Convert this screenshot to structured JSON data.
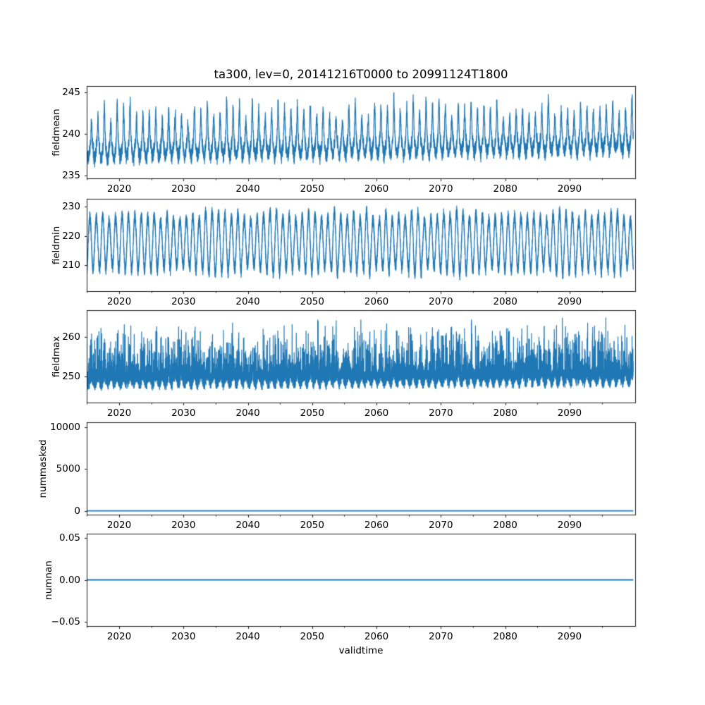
{
  "figure": {
    "title": "ta300, lev=0, 20141216T0000 to 20991124T1800",
    "xlabel": "validtime",
    "line_color": "#1f77b4",
    "background": "#ffffff",
    "spine_color": "#000000"
  },
  "x_axis": {
    "label": "validtime",
    "xlim": [
      2014.96,
      2100.2
    ],
    "major_ticks": [
      2020,
      2030,
      2040,
      2050,
      2060,
      2070,
      2080,
      2090
    ],
    "major_tick_labels": [
      "2020",
      "2030",
      "2040",
      "2050",
      "2060",
      "2070",
      "2080",
      "2090"
    ],
    "minor_ticks": [
      2015,
      2025,
      2035,
      2045,
      2055,
      2065,
      2075,
      2085,
      2095
    ],
    "data_start": 2014.96,
    "data_end": 2099.9
  },
  "chart_data": [
    {
      "type": "line",
      "ylabel": "fieldmean",
      "y_ticks": [
        235,
        240,
        245
      ],
      "y_tick_labels": [
        "235",
        "240",
        "245"
      ],
      "ylim": [
        234.66,
        245.76
      ],
      "series": {
        "name": "fieldmean",
        "color": "#1f77b4",
        "kind": "seasonal-spikes",
        "seed": 11,
        "n": 6000,
        "x_start": 2014.96,
        "x_end": 2099.9,
        "base": 238.4,
        "trend": 0.9,
        "noise": 1.7,
        "annual_peak_min": 2.6,
        "annual_peak_max": 5.2,
        "observed_min": 235.3,
        "observed_max": 245.5,
        "description": "noisy series with sharp annual peaks to ~242-245.5, baseline ~237-239.5, dips to ~235.5, slight upward trend"
      }
    },
    {
      "type": "line",
      "ylabel": "fieldmin",
      "y_ticks": [
        210,
        220,
        230
      ],
      "y_tick_labels": [
        "210",
        "220",
        "230"
      ],
      "ylim": [
        201.1,
        232.65
      ],
      "series": {
        "name": "fieldmin",
        "color": "#1f77b4",
        "kind": "annual-wave",
        "seed": 23,
        "n": 12000,
        "x_start": 2014.96,
        "x_end": 2099.9,
        "base": 217.6,
        "trend": 0.0,
        "noise": 4.2,
        "annual_amp_min": 7.5,
        "annual_amp_max": 10.7,
        "observed_min": 204.0,
        "observed_max": 231.5,
        "description": "dense regular annual oscillation between ~206 and ~230 centered near 218"
      }
    },
    {
      "type": "line",
      "ylabel": "fieldmax",
      "y_ticks": [
        250,
        260
      ],
      "y_tick_labels": [
        "250",
        "260"
      ],
      "ylim": [
        243.4,
        266.9
      ],
      "series": {
        "name": "fieldmax",
        "color": "#1f77b4",
        "kind": "noisy-spikes",
        "seed": 37,
        "n": 12000,
        "x_start": 2014.96,
        "x_end": 2099.9,
        "base": 249.8,
        "trend": 0.7,
        "noise": 4.6,
        "spike_max": 12.0,
        "observed_min": 244.6,
        "observed_max": 266.5,
        "description": "dense noisy band ~247-253 with frequent upward spikes to 255-262 and occasional spikes to ~266"
      }
    },
    {
      "type": "line",
      "ylabel": "nummasked",
      "y_ticks": [
        0,
        5000,
        10000
      ],
      "y_tick_labels": [
        "0",
        "5000",
        "10000"
      ],
      "ylim": [
        -450,
        10550
      ],
      "series": {
        "name": "nummasked",
        "color": "#1f77b4",
        "kind": "constant",
        "value": 0,
        "x_start": 2014.96,
        "x_end": 2099.9,
        "description": "flat line at 0 for the whole period"
      }
    },
    {
      "type": "line",
      "ylabel": "numnan",
      "y_ticks": [
        -0.05,
        0.0,
        0.05
      ],
      "y_tick_labels": [
        "−0.05",
        "0.00",
        "0.05"
      ],
      "ylim": [
        -0.0555,
        0.0555
      ],
      "series": {
        "name": "numnan",
        "color": "#1f77b4",
        "kind": "constant",
        "value": 0,
        "x_start": 2014.96,
        "x_end": 2099.9,
        "description": "flat line at 0.00 for the whole period"
      }
    }
  ]
}
